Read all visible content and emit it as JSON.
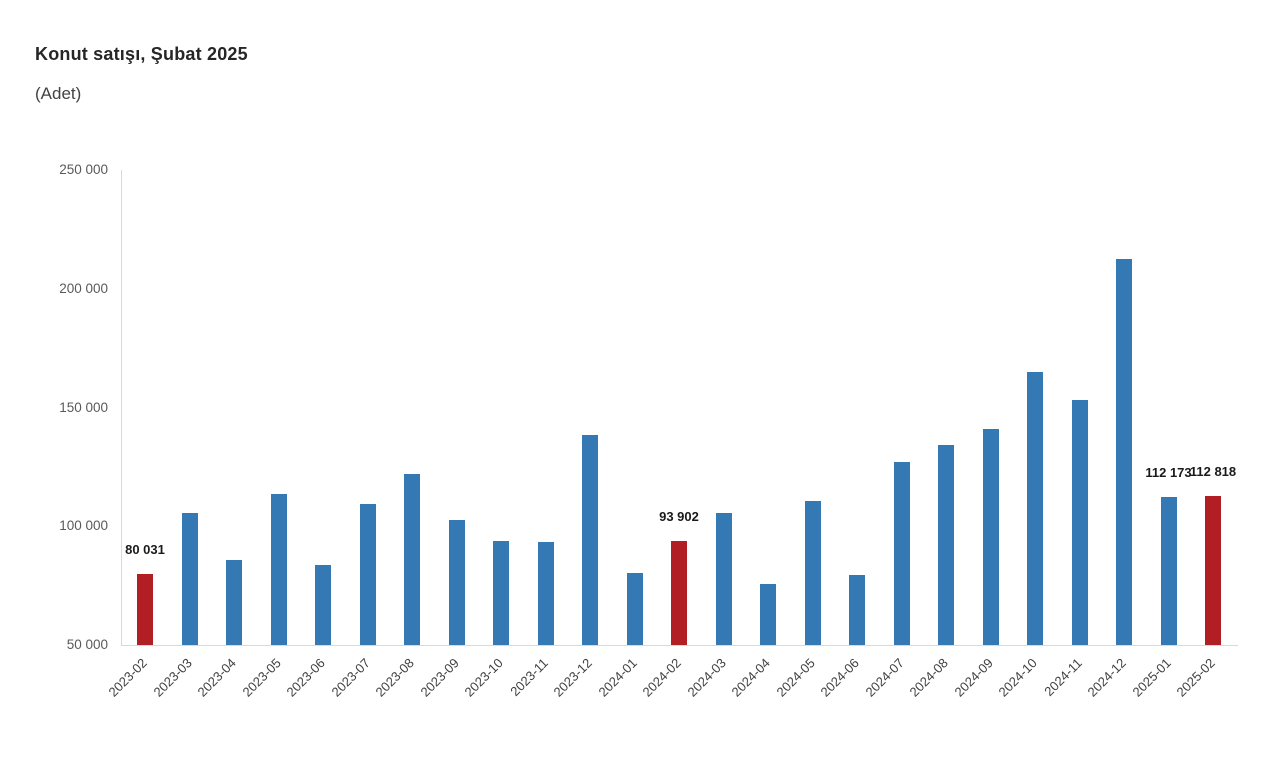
{
  "chart": {
    "title": "Konut satışı, Şubat 2025",
    "subtitle": "(Adet)"
  },
  "chart_data": {
    "type": "bar",
    "title": "Konut satışı, Şubat 2025",
    "unit_label": "(Adet)",
    "categories": [
      "2023-02",
      "2023-03",
      "2023-04",
      "2023-05",
      "2023-06",
      "2023-07",
      "2023-08",
      "2023-09",
      "2023-10",
      "2023-11",
      "2023-12",
      "2024-01",
      "2024-02",
      "2024-03",
      "2024-04",
      "2024-05",
      "2024-06",
      "2024-07",
      "2024-08",
      "2024-09",
      "2024-10",
      "2024-11",
      "2024-12",
      "2025-01",
      "2025-02"
    ],
    "values": [
      80031,
      105476,
      85652,
      113403,
      83636,
      109548,
      122091,
      102656,
      93761,
      93514,
      138577,
      80308,
      93902,
      105394,
      75569,
      110588,
      79313,
      127088,
      134155,
      140919,
      165138,
      153014,
      212637,
      112173,
      112818
    ],
    "highlighted_categories": [
      "2023-02",
      "2024-02",
      "2025-02"
    ],
    "data_labels": {
      "2023-02": "80 031",
      "2024-02": "93 902",
      "2025-01": "112 173",
      "2025-02": "112 818"
    },
    "y_axis": {
      "min": 50000,
      "max": 250000,
      "tick_step": 50000,
      "tick_labels": [
        "50 000",
        "100 000",
        "150 000",
        "200 000",
        "250 000"
      ]
    },
    "x_tick_rotation": -45,
    "grid": false,
    "legend": null,
    "colors": {
      "bar": "#3579B4",
      "highlight": "#B11F24",
      "axis_line": "#D9D9D9",
      "tick_text": "#595959",
      "xtick_text": "#404040",
      "label_text": "#1A1A1A"
    }
  }
}
